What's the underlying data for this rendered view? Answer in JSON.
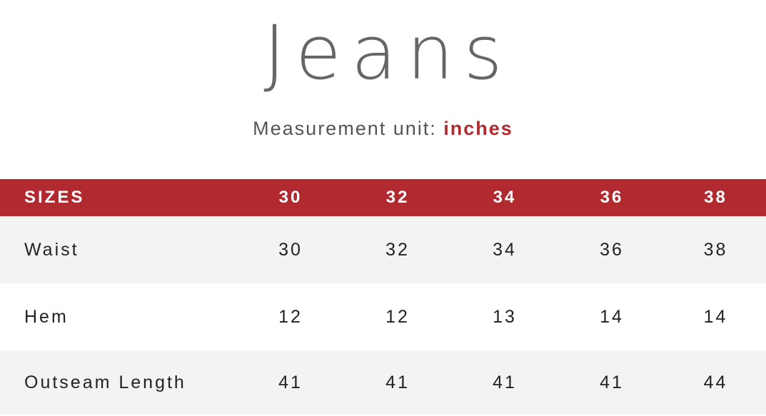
{
  "title": "Jeans",
  "subtitle": {
    "prefix": "Measurement unit:",
    "unit": "inches"
  },
  "colors": {
    "accent": "#b02a30",
    "title": "#666666",
    "row_shade": "#f3f3f3"
  },
  "table": {
    "header": {
      "label": "SIZES",
      "sizes": [
        "30",
        "32",
        "34",
        "36",
        "38"
      ]
    },
    "rows": [
      {
        "label": "Waist",
        "values": [
          "30",
          "32",
          "34",
          "36",
          "38"
        ]
      },
      {
        "label": "Hem",
        "values": [
          "12",
          "12",
          "13",
          "14",
          "14"
        ]
      },
      {
        "label": "Outseam Length",
        "values": [
          "41",
          "41",
          "41",
          "41",
          "44"
        ]
      }
    ]
  }
}
